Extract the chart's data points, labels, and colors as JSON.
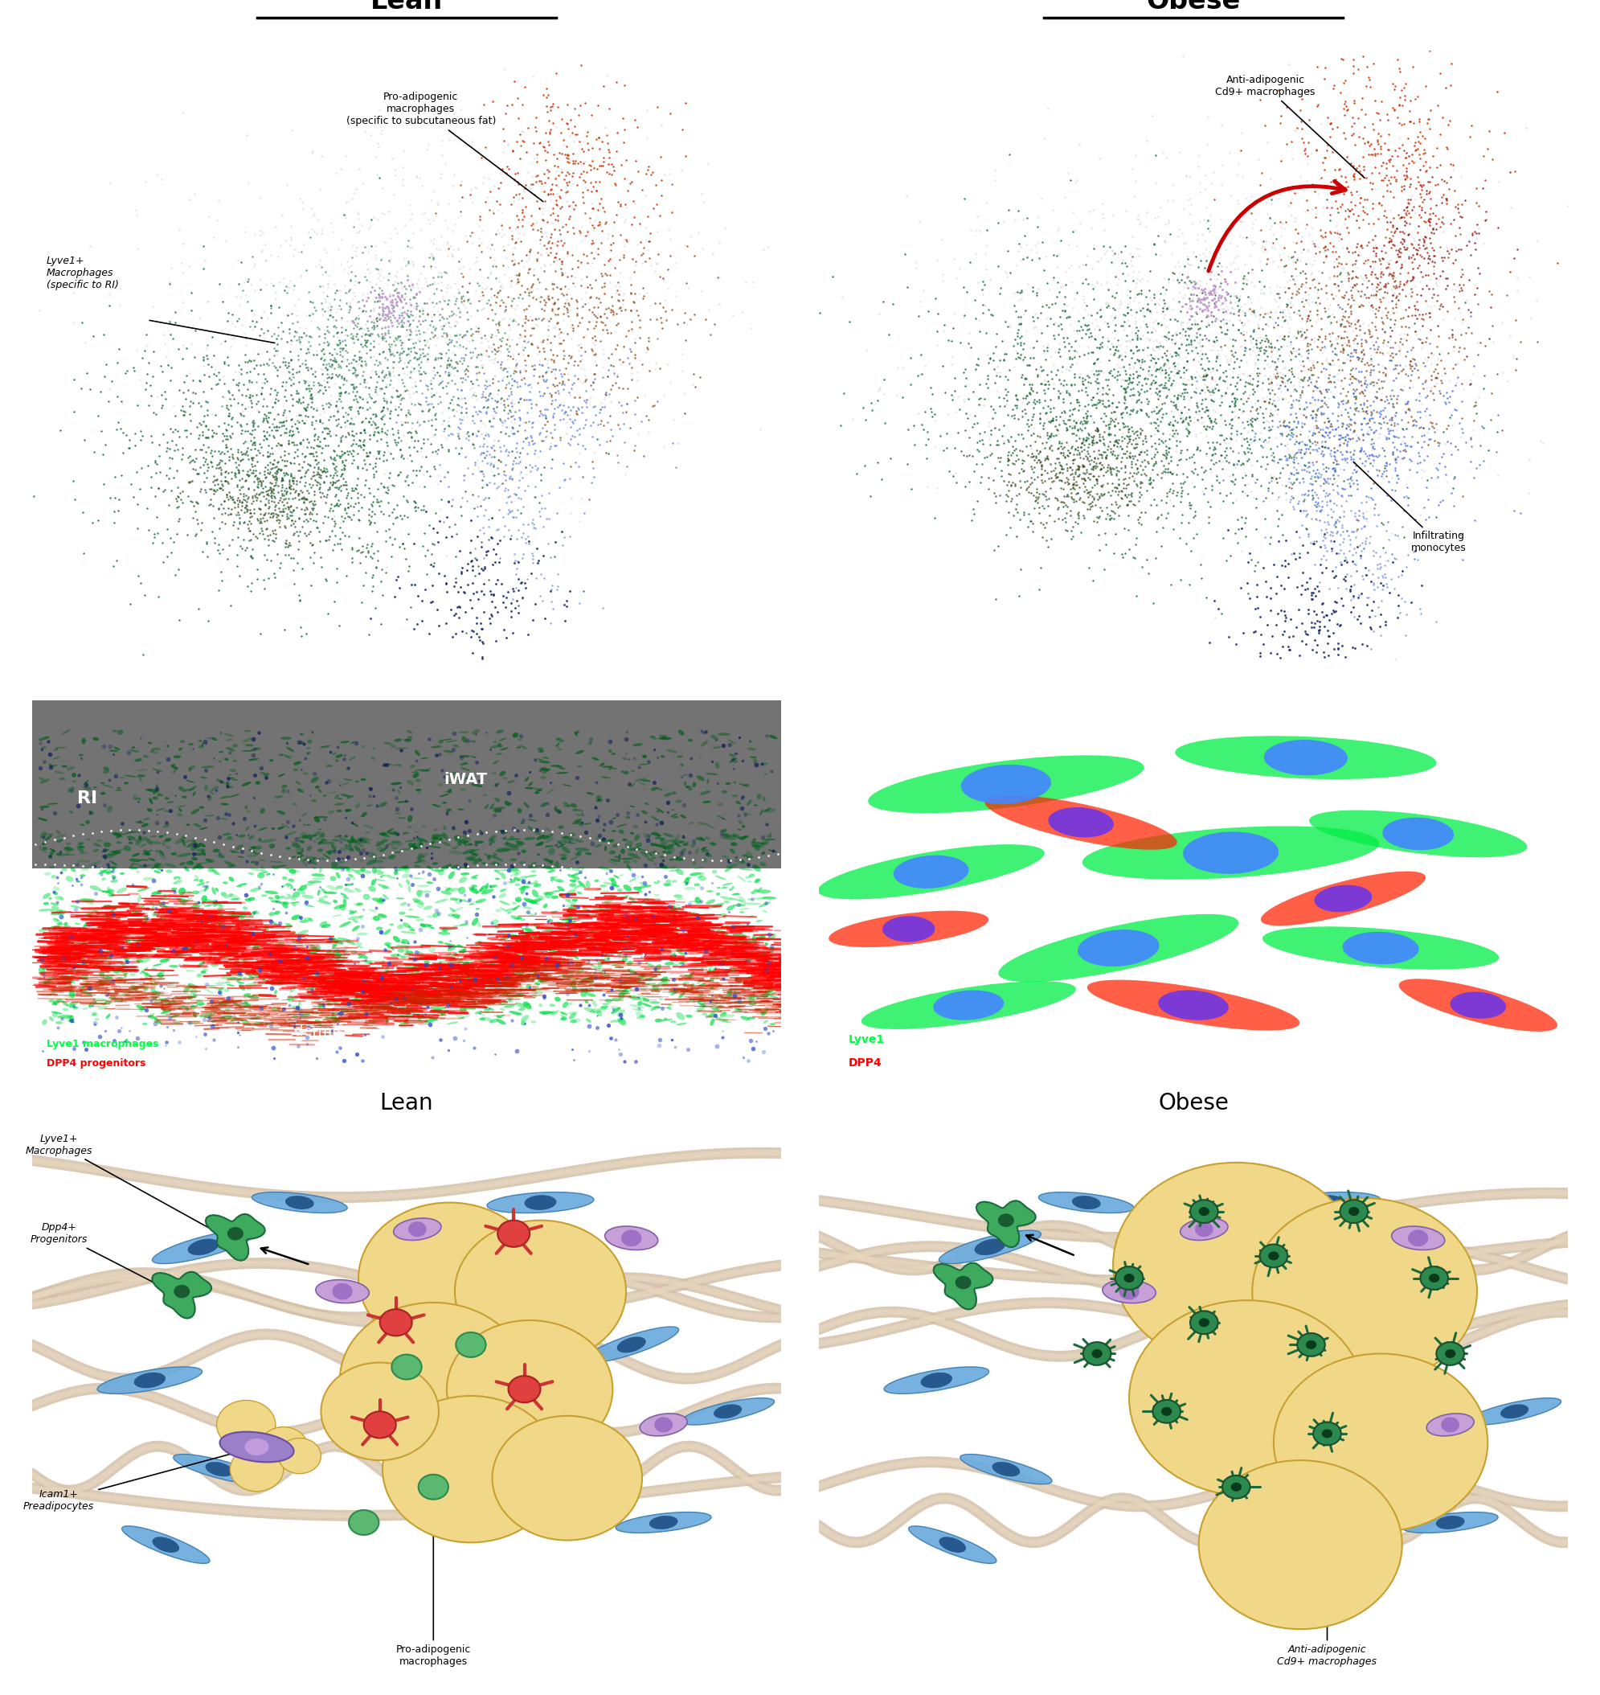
{
  "fig_width": 19.91,
  "fig_height": 21.08,
  "bg_color": "#ffffff",
  "lean_title": "Lean",
  "obese_title": "Obese",
  "lean_title2": "Lean",
  "obese_title2": "Obese",
  "cluster_colors": {
    "dark_green": "#1a6b3c",
    "medium_green": "#3d8b5e",
    "red_orange": "#cc3300",
    "brown": "#8b4513",
    "blue": "#4169e1",
    "steel_blue": "#5b7fd4",
    "navy": "#1a2a6b",
    "gray": "#c8c8c8",
    "mauve": "#c39bd3",
    "dark_olive": "#3d4a1a",
    "dark_red": "#8b0000"
  }
}
